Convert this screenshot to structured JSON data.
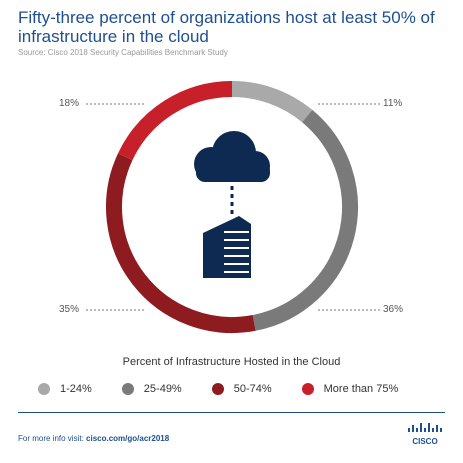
{
  "title": "Fifty-three percent of organizations host at least 50% of infrastructure in the cloud",
  "source": "Source: Cisco 2018 Security Capabilities Benchmark Study",
  "chart_data": {
    "type": "pie",
    "style": "donut",
    "series_title": "Percent of Infrastructure Hosted in the Cloud",
    "slices": [
      {
        "label": "1-24%",
        "value": 11,
        "value_label": "11%",
        "color": "#a9a9a9"
      },
      {
        "label": "25-49%",
        "value": 36,
        "value_label": "36%",
        "color": "#7a7a7a"
      },
      {
        "label": "50-74%",
        "value": 35,
        "value_label": "35%",
        "color": "#8e1b20"
      },
      {
        "label": "More than 75%",
        "value": 18,
        "value_label": "18%",
        "color": "#c8202b"
      }
    ],
    "legend": "bottom"
  },
  "icons": {
    "center_top": "cloud-icon",
    "center_bottom": "building-icon",
    "logo": "cisco-logo"
  },
  "footer": {
    "prefix": "For more info visit: ",
    "link": "cisco.com/go/acr2018"
  },
  "logo_text": "CISCO",
  "colors": {
    "title": "#1d4f91",
    "icon": "#0e2a52"
  }
}
